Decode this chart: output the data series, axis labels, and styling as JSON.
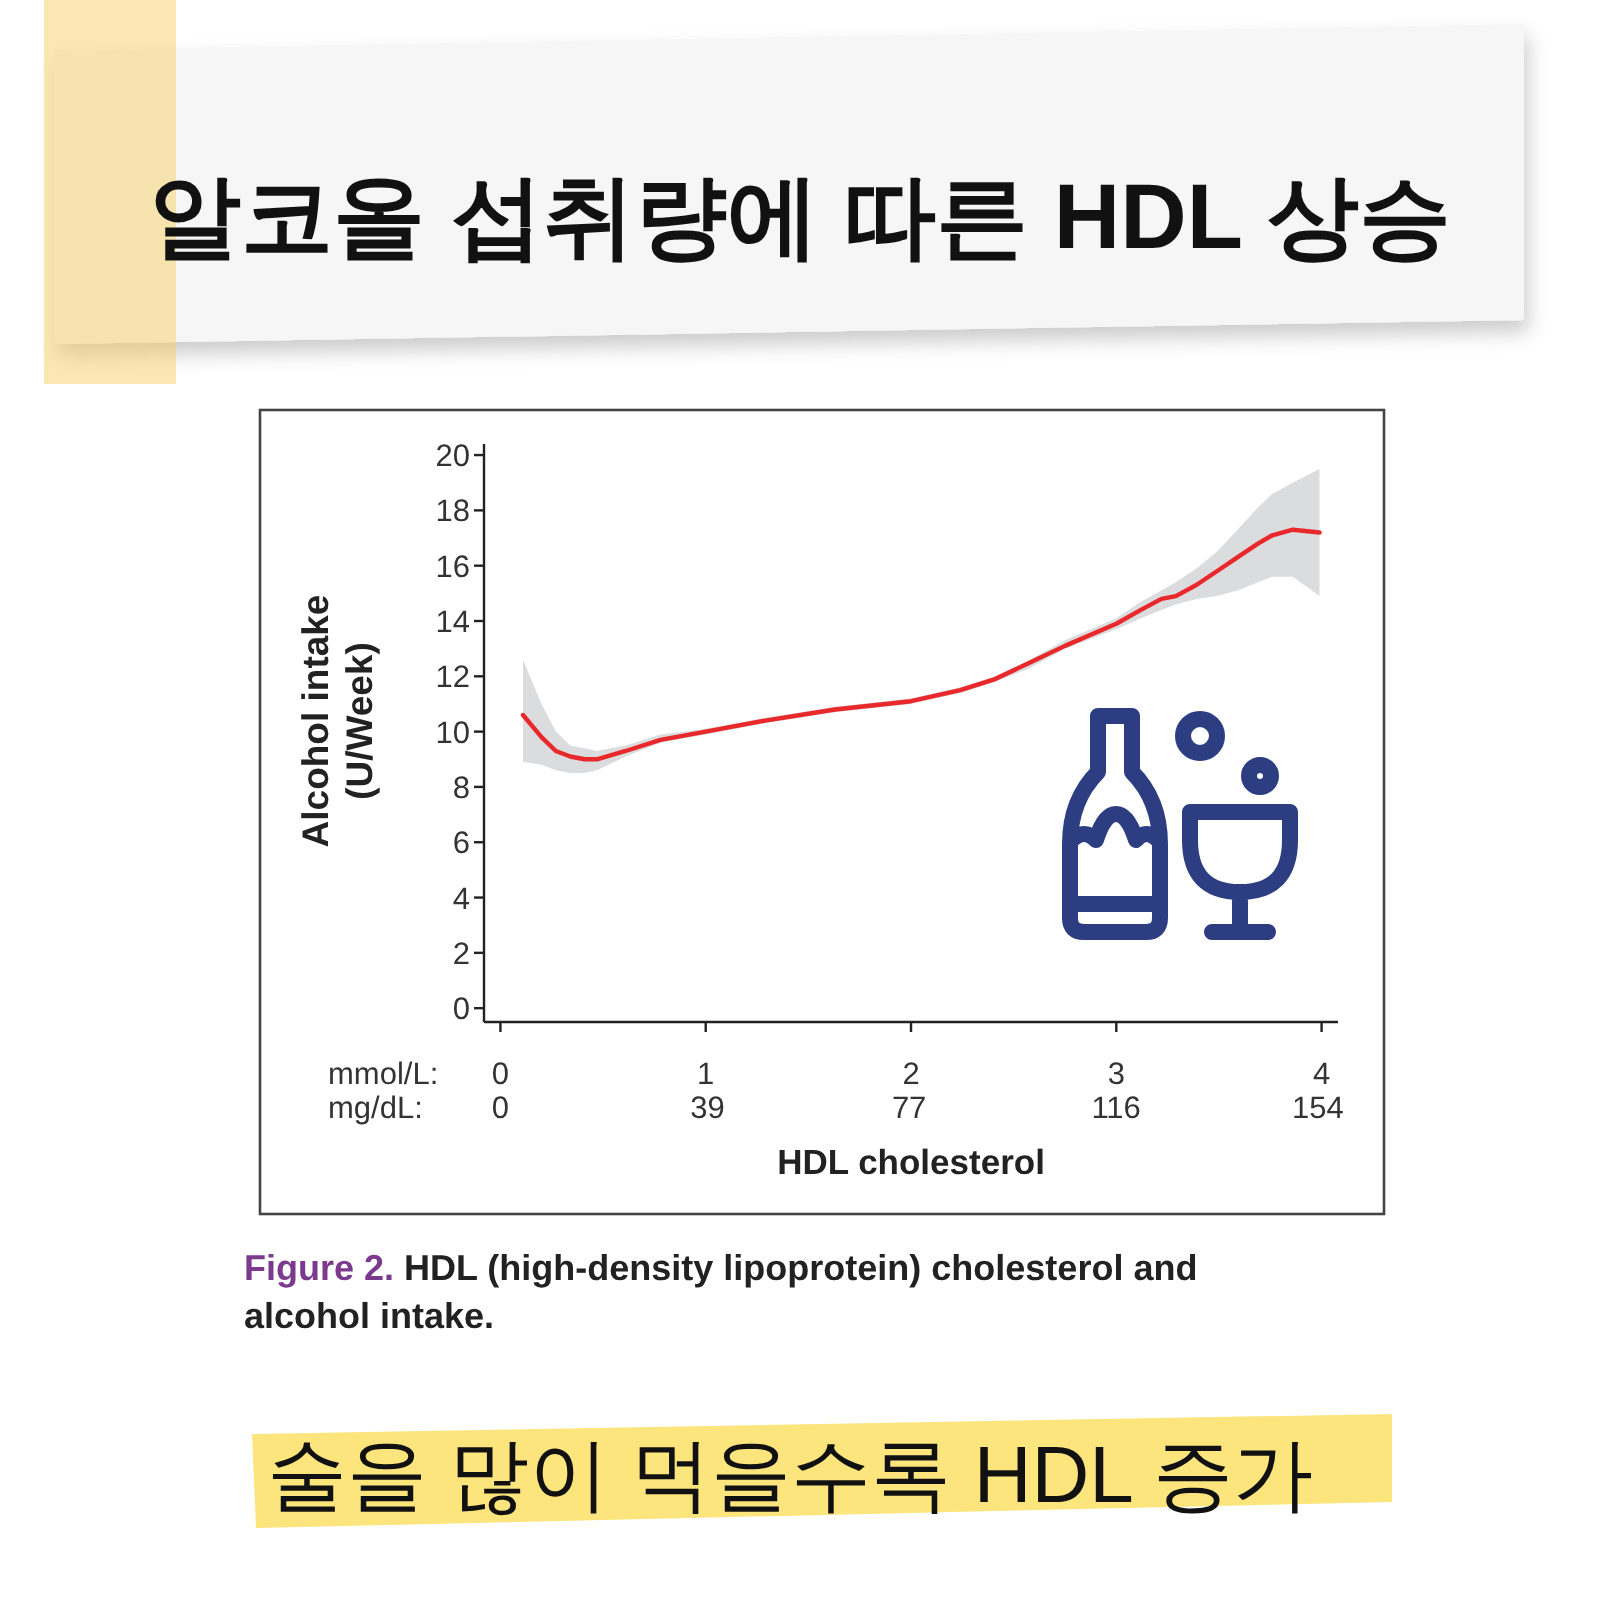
{
  "chart_data": {
    "type": "line",
    "title": "알코올 섭취량에 따른 HDL 상승",
    "xlabel": "HDL cholesterol",
    "ylabel": "Alcohol intake\n(U/Week)",
    "annotations": [
      "mmol/L:",
      "mg/dL:",
      "Figure 2.",
      "HDL (high-density lipoprotein) cholesterol and alcohol intake.",
      "술을 많이 먹을수록 HDL 증가"
    ],
    "x": [
      0.11,
      0.2,
      0.27,
      0.34,
      0.41,
      0.47,
      0.61,
      0.78,
      1.0,
      1.29,
      1.63,
      2.0,
      2.24,
      2.41,
      2.58,
      2.75,
      3.0,
      3.12,
      3.22,
      3.29,
      3.39,
      3.49,
      3.59,
      3.69,
      3.76,
      3.86,
      3.99
    ],
    "series": [
      {
        "color": "#e8282b",
        "values": [
          10.6,
          9.8,
          9.3,
          9.1,
          9.0,
          9.0,
          9.3,
          9.7,
          10.0,
          10.4,
          10.8,
          11.1,
          11.5,
          11.9,
          12.5,
          13.1,
          13.9,
          14.4,
          14.8,
          14.9,
          15.3,
          15.8,
          16.3,
          16.8,
          17.1,
          17.3,
          17.2
        ],
        "upper": [
          12.6,
          11.0,
          10.0,
          9.5,
          9.4,
          9.3,
          9.5,
          9.9,
          10.1,
          10.5,
          10.9,
          11.2,
          11.6,
          12.0,
          12.6,
          13.3,
          14.1,
          14.7,
          15.1,
          15.4,
          15.9,
          16.5,
          17.3,
          18.1,
          18.6,
          19.0,
          19.5
        ],
        "lower": [
          8.9,
          8.8,
          8.6,
          8.5,
          8.5,
          8.6,
          9.1,
          9.6,
          9.9,
          10.3,
          10.7,
          11.0,
          11.4,
          11.8,
          12.3,
          13.0,
          13.7,
          14.1,
          14.4,
          14.6,
          14.8,
          14.9,
          15.1,
          15.4,
          15.6,
          15.6,
          14.9
        ]
      }
    ],
    "xlim": [
      -0.08,
      4.08
    ],
    "xticks": [
      0,
      1,
      2,
      3,
      4
    ],
    "x2lim": [
      -3.1,
      157.8
    ],
    "x2ticks": [
      0,
      39,
      77,
      116,
      154
    ],
    "ylim": [
      -0.5,
      20.4
    ],
    "yticks": [
      0,
      2,
      4,
      6,
      8,
      10,
      12,
      14,
      16,
      18,
      20
    ],
    "line_style": "solid"
  }
}
